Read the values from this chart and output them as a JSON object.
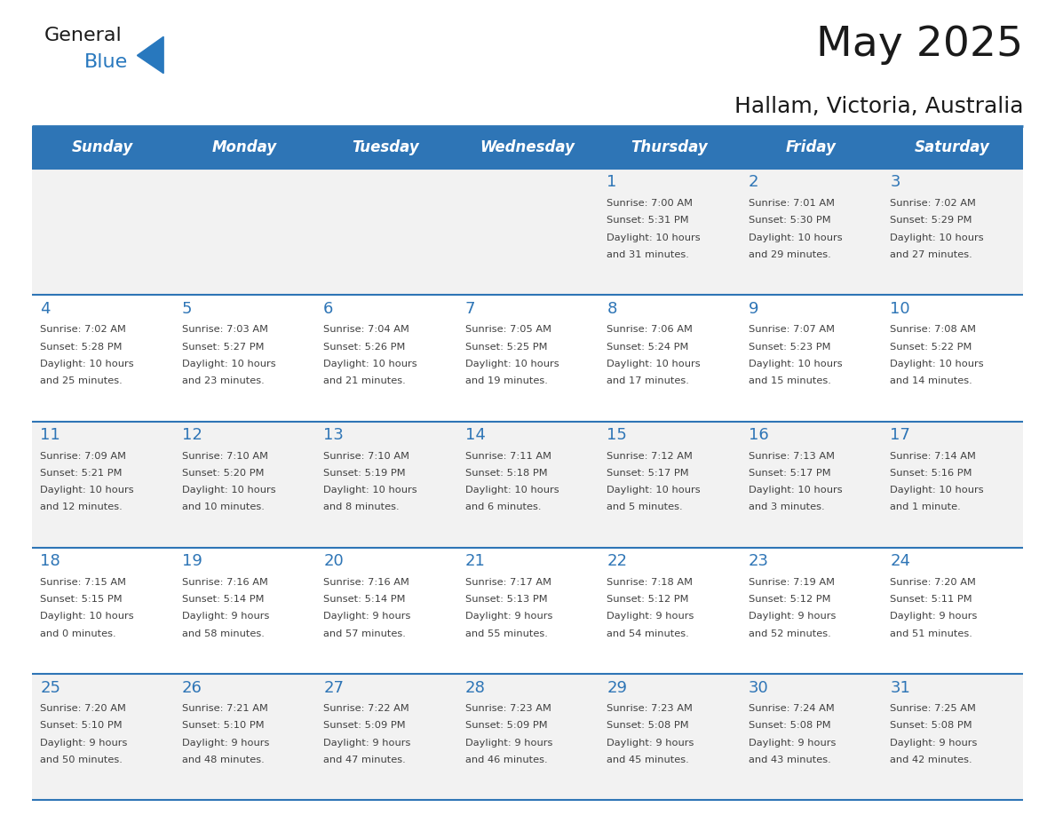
{
  "title": "May 2025",
  "subtitle": "Hallam, Victoria, Australia",
  "days_of_week": [
    "Sunday",
    "Monday",
    "Tuesday",
    "Wednesday",
    "Thursday",
    "Friday",
    "Saturday"
  ],
  "header_bg": "#2E75B6",
  "header_text": "#FFFFFF",
  "row_bg_odd": "#F2F2F2",
  "row_bg_even": "#FFFFFF",
  "day_num_color": "#2E75B6",
  "separator_color": "#2E75B6",
  "text_color": "#404040",
  "logo_general_color": "#1a1a1a",
  "logo_blue_color": "#2878BE",
  "calendar_data": [
    [
      {
        "day": null,
        "sunrise": null,
        "sunset": null,
        "daylight_line1": null,
        "daylight_line2": null
      },
      {
        "day": null,
        "sunrise": null,
        "sunset": null,
        "daylight_line1": null,
        "daylight_line2": null
      },
      {
        "day": null,
        "sunrise": null,
        "sunset": null,
        "daylight_line1": null,
        "daylight_line2": null
      },
      {
        "day": null,
        "sunrise": null,
        "sunset": null,
        "daylight_line1": null,
        "daylight_line2": null
      },
      {
        "day": 1,
        "sunrise": "7:00 AM",
        "sunset": "5:31 PM",
        "daylight_line1": "Daylight: 10 hours",
        "daylight_line2": "and 31 minutes."
      },
      {
        "day": 2,
        "sunrise": "7:01 AM",
        "sunset": "5:30 PM",
        "daylight_line1": "Daylight: 10 hours",
        "daylight_line2": "and 29 minutes."
      },
      {
        "day": 3,
        "sunrise": "7:02 AM",
        "sunset": "5:29 PM",
        "daylight_line1": "Daylight: 10 hours",
        "daylight_line2": "and 27 minutes."
      }
    ],
    [
      {
        "day": 4,
        "sunrise": "7:02 AM",
        "sunset": "5:28 PM",
        "daylight_line1": "Daylight: 10 hours",
        "daylight_line2": "and 25 minutes."
      },
      {
        "day": 5,
        "sunrise": "7:03 AM",
        "sunset": "5:27 PM",
        "daylight_line1": "Daylight: 10 hours",
        "daylight_line2": "and 23 minutes."
      },
      {
        "day": 6,
        "sunrise": "7:04 AM",
        "sunset": "5:26 PM",
        "daylight_line1": "Daylight: 10 hours",
        "daylight_line2": "and 21 minutes."
      },
      {
        "day": 7,
        "sunrise": "7:05 AM",
        "sunset": "5:25 PM",
        "daylight_line1": "Daylight: 10 hours",
        "daylight_line2": "and 19 minutes."
      },
      {
        "day": 8,
        "sunrise": "7:06 AM",
        "sunset": "5:24 PM",
        "daylight_line1": "Daylight: 10 hours",
        "daylight_line2": "and 17 minutes."
      },
      {
        "day": 9,
        "sunrise": "7:07 AM",
        "sunset": "5:23 PM",
        "daylight_line1": "Daylight: 10 hours",
        "daylight_line2": "and 15 minutes."
      },
      {
        "day": 10,
        "sunrise": "7:08 AM",
        "sunset": "5:22 PM",
        "daylight_line1": "Daylight: 10 hours",
        "daylight_line2": "and 14 minutes."
      }
    ],
    [
      {
        "day": 11,
        "sunrise": "7:09 AM",
        "sunset": "5:21 PM",
        "daylight_line1": "Daylight: 10 hours",
        "daylight_line2": "and 12 minutes."
      },
      {
        "day": 12,
        "sunrise": "7:10 AM",
        "sunset": "5:20 PM",
        "daylight_line1": "Daylight: 10 hours",
        "daylight_line2": "and 10 minutes."
      },
      {
        "day": 13,
        "sunrise": "7:10 AM",
        "sunset": "5:19 PM",
        "daylight_line1": "Daylight: 10 hours",
        "daylight_line2": "and 8 minutes."
      },
      {
        "day": 14,
        "sunrise": "7:11 AM",
        "sunset": "5:18 PM",
        "daylight_line1": "Daylight: 10 hours",
        "daylight_line2": "and 6 minutes."
      },
      {
        "day": 15,
        "sunrise": "7:12 AM",
        "sunset": "5:17 PM",
        "daylight_line1": "Daylight: 10 hours",
        "daylight_line2": "and 5 minutes."
      },
      {
        "day": 16,
        "sunrise": "7:13 AM",
        "sunset": "5:17 PM",
        "daylight_line1": "Daylight: 10 hours",
        "daylight_line2": "and 3 minutes."
      },
      {
        "day": 17,
        "sunrise": "7:14 AM",
        "sunset": "5:16 PM",
        "daylight_line1": "Daylight: 10 hours",
        "daylight_line2": "and 1 minute."
      }
    ],
    [
      {
        "day": 18,
        "sunrise": "7:15 AM",
        "sunset": "5:15 PM",
        "daylight_line1": "Daylight: 10 hours",
        "daylight_line2": "and 0 minutes."
      },
      {
        "day": 19,
        "sunrise": "7:16 AM",
        "sunset": "5:14 PM",
        "daylight_line1": "Daylight: 9 hours",
        "daylight_line2": "and 58 minutes."
      },
      {
        "day": 20,
        "sunrise": "7:16 AM",
        "sunset": "5:14 PM",
        "daylight_line1": "Daylight: 9 hours",
        "daylight_line2": "and 57 minutes."
      },
      {
        "day": 21,
        "sunrise": "7:17 AM",
        "sunset": "5:13 PM",
        "daylight_line1": "Daylight: 9 hours",
        "daylight_line2": "and 55 minutes."
      },
      {
        "day": 22,
        "sunrise": "7:18 AM",
        "sunset": "5:12 PM",
        "daylight_line1": "Daylight: 9 hours",
        "daylight_line2": "and 54 minutes."
      },
      {
        "day": 23,
        "sunrise": "7:19 AM",
        "sunset": "5:12 PM",
        "daylight_line1": "Daylight: 9 hours",
        "daylight_line2": "and 52 minutes."
      },
      {
        "day": 24,
        "sunrise": "7:20 AM",
        "sunset": "5:11 PM",
        "daylight_line1": "Daylight: 9 hours",
        "daylight_line2": "and 51 minutes."
      }
    ],
    [
      {
        "day": 25,
        "sunrise": "7:20 AM",
        "sunset": "5:10 PM",
        "daylight_line1": "Daylight: 9 hours",
        "daylight_line2": "and 50 minutes."
      },
      {
        "day": 26,
        "sunrise": "7:21 AM",
        "sunset": "5:10 PM",
        "daylight_line1": "Daylight: 9 hours",
        "daylight_line2": "and 48 minutes."
      },
      {
        "day": 27,
        "sunrise": "7:22 AM",
        "sunset": "5:09 PM",
        "daylight_line1": "Daylight: 9 hours",
        "daylight_line2": "and 47 minutes."
      },
      {
        "day": 28,
        "sunrise": "7:23 AM",
        "sunset": "5:09 PM",
        "daylight_line1": "Daylight: 9 hours",
        "daylight_line2": "and 46 minutes."
      },
      {
        "day": 29,
        "sunrise": "7:23 AM",
        "sunset": "5:08 PM",
        "daylight_line1": "Daylight: 9 hours",
        "daylight_line2": "and 45 minutes."
      },
      {
        "day": 30,
        "sunrise": "7:24 AM",
        "sunset": "5:08 PM",
        "daylight_line1": "Daylight: 9 hours",
        "daylight_line2": "and 43 minutes."
      },
      {
        "day": 31,
        "sunrise": "7:25 AM",
        "sunset": "5:08 PM",
        "daylight_line1": "Daylight: 9 hours",
        "daylight_line2": "and 42 minutes."
      }
    ]
  ]
}
